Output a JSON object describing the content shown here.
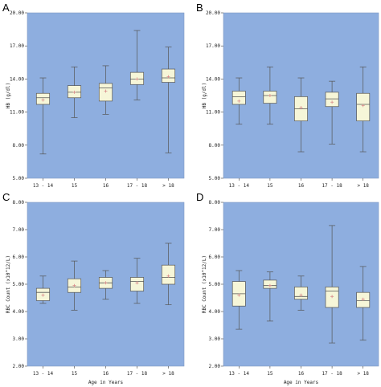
{
  "figure": {
    "background": "#ffffff",
    "plot_bg": "#8eaedf",
    "box_fill": "#f6f6d8",
    "box_stroke": "#555555",
    "mean_marker_color": "#d98b8b"
  },
  "chart_data": [
    {
      "panel": "A",
      "type": "box",
      "xlabel": "",
      "ylabel": "HB (g/dl)",
      "ylim": [
        5.0,
        20.0
      ],
      "yticks": [
        "5.00",
        "8.00",
        "11.00",
        "14.00",
        "17.00",
        "20.00"
      ],
      "categories": [
        "13 - 14",
        "15",
        "16",
        "17 - 18",
        "> 18"
      ],
      "boxes": [
        {
          "min": 7.2,
          "q1": 11.7,
          "median": 12.3,
          "q3": 12.7,
          "max": 14.1,
          "mean": 12.1
        },
        {
          "min": 10.5,
          "q1": 12.3,
          "median": 12.8,
          "q3": 13.4,
          "max": 15.1,
          "mean": 12.8
        },
        {
          "min": 10.8,
          "q1": 12.0,
          "median": 13.2,
          "q3": 13.6,
          "max": 15.2,
          "mean": 12.9
        },
        {
          "min": 12.1,
          "q1": 13.5,
          "median": 14.0,
          "q3": 14.6,
          "max": 18.4,
          "mean": 14.0
        },
        {
          "min": 7.3,
          "q1": 13.7,
          "median": 14.1,
          "q3": 14.9,
          "max": 16.9,
          "mean": 14.2
        }
      ]
    },
    {
      "panel": "B",
      "type": "box",
      "xlabel": "",
      "ylabel": "HB (g/dl)",
      "ylim": [
        5.0,
        20.0
      ],
      "yticks": [
        "5.00",
        "8.00",
        "11.00",
        "14.00",
        "17.00",
        "20.00"
      ],
      "categories": [
        "13 - 14",
        "15",
        "16",
        "17 - 18",
        "> 18"
      ],
      "boxes": [
        {
          "min": 9.9,
          "q1": 11.7,
          "median": 12.4,
          "q3": 12.9,
          "max": 14.1,
          "mean": 12.0
        },
        {
          "min": 9.9,
          "q1": 11.8,
          "median": 12.5,
          "q3": 12.9,
          "max": 15.1,
          "mean": 12.5
        },
        {
          "min": 7.4,
          "q1": 10.2,
          "median": 11.3,
          "q3": 12.4,
          "max": 14.1,
          "mean": 11.4
        },
        {
          "min": 8.1,
          "q1": 11.5,
          "median": 12.2,
          "q3": 12.8,
          "max": 13.8,
          "mean": 11.9
        },
        {
          "min": 7.4,
          "q1": 10.2,
          "median": 11.7,
          "q3": 12.7,
          "max": 15.1,
          "mean": 11.6
        }
      ]
    },
    {
      "panel": "C",
      "type": "box",
      "xlabel": "Age in Years",
      "ylabel": "RBC Count (x10^12/L)",
      "ylim": [
        2.0,
        8.0
      ],
      "yticks": [
        "2.00",
        "3.00",
        "4.00",
        "5.00",
        "6.00",
        "7.00",
        "8.00"
      ],
      "categories": [
        "13 - 14",
        "15",
        "16",
        "17 - 18",
        "> 18"
      ],
      "boxes": [
        {
          "min": 4.3,
          "q1": 4.4,
          "median": 4.7,
          "q3": 4.85,
          "max": 5.3,
          "mean": 4.6
        },
        {
          "min": 4.05,
          "q1": 4.7,
          "median": 4.9,
          "q3": 5.2,
          "max": 5.85,
          "mean": 4.95
        },
        {
          "min": 4.45,
          "q1": 4.85,
          "median": 5.05,
          "q3": 5.25,
          "max": 5.5,
          "mean": 5.05
        },
        {
          "min": 4.3,
          "q1": 4.75,
          "median": 5.1,
          "q3": 5.25,
          "max": 5.95,
          "mean": 5.05
        },
        {
          "min": 4.25,
          "q1": 5.0,
          "median": 5.25,
          "q3": 5.7,
          "max": 6.5,
          "mean": 5.3
        }
      ]
    },
    {
      "panel": "D",
      "type": "box",
      "xlabel": "Age in Years",
      "ylabel": "RBC Count (x10^12/L)",
      "ylim": [
        2.0,
        8.0
      ],
      "yticks": [
        "2.00",
        "3.00",
        "4.00",
        "5.00",
        "6.00",
        "7.00",
        "8.00"
      ],
      "categories": [
        "13 - 14",
        "15",
        "16",
        "17 - 18",
        "> 18"
      ],
      "boxes": [
        {
          "min": 3.35,
          "q1": 4.2,
          "median": 4.65,
          "q3": 5.1,
          "max": 5.5,
          "mean": 4.6
        },
        {
          "min": 3.65,
          "q1": 4.85,
          "median": 4.95,
          "q3": 5.15,
          "max": 5.45,
          "mean": 4.95
        },
        {
          "min": 4.05,
          "q1": 4.45,
          "median": 4.55,
          "q3": 4.9,
          "max": 5.3,
          "mean": 4.6
        },
        {
          "min": 2.85,
          "q1": 4.15,
          "median": 4.75,
          "q3": 4.9,
          "max": 7.15,
          "mean": 4.55
        },
        {
          "min": 2.95,
          "q1": 4.15,
          "median": 4.4,
          "q3": 4.7,
          "max": 5.65,
          "mean": 4.45
        }
      ]
    }
  ]
}
